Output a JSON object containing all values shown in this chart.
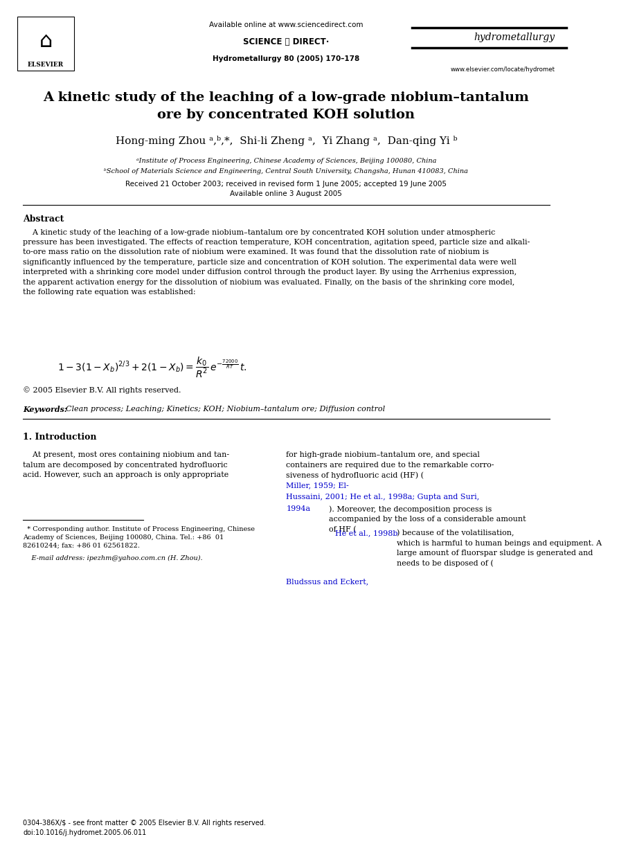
{
  "bg_color": "#ffffff",
  "page_width": 9.07,
  "page_height": 12.38,
  "dpi": 100,
  "header_available": "Available online at www.sciencedirect.com",
  "header_journal_info": "Hydrometallurgy 80 (2005) 170–178",
  "header_journal_name": "hydrometallurgy",
  "header_website": "www.elsevier.com/locate/hydromet",
  "header_elsevier": "ELSEVIER",
  "title": "A kinetic study of the leaching of a low-grade niobium–tantalum\nore by concentrated KOH solution",
  "affil_a": "ᵃInstitute of Process Engineering, Chinese Academy of Sciences, Beijing 100080, China",
  "affil_b": "ᵇSchool of Materials Science and Engineering, Central South University, Changsha, Hunan 410083, China",
  "received": "Received 21 October 2003; received in revised form 1 June 2005; accepted 19 June 2005",
  "available_online2": "Available online 3 August 2005",
  "abstract_title": "Abstract",
  "abstract_text": "    A kinetic study of the leaching of a low-grade niobium–tantalum ore by concentrated KOH solution under atmospheric\npressure has been investigated. The effects of reaction temperature, KOH concentration, agitation speed, particle size and alkali-\nto-ore mass ratio on the dissolution rate of niobium were examined. It was found that the dissolution rate of niobium is\nsignificantly influenced by the temperature, particle size and concentration of KOH solution. The experimental data were well\ninterpreted with a shrinking core model under diffusion control through the product layer. By using the Arrhenius expression,\nthe apparent activation energy for the dissolution of niobium was evaluated. Finally, on the basis of the shrinking core model,\nthe following rate equation was established:",
  "copyright": "© 2005 Elsevier B.V. All rights reserved.",
  "keywords_label": "Keywords: ",
  "keywords_text": "Clean process; Leaching; Kinetics; KOH; Niobium–tantalum ore; Diffusion control",
  "section1_title": "1. Introduction",
  "section1_col1": "    At present, most ores containing niobium and tan-\ntalum are decomposed by concentrated hydrofluoric\nacid. However, such an approach is only appropriate",
  "footnote_star": "  * Corresponding author. Institute of Process Engineering, Chinese\nAcademy of Sciences, Beijing 100080, China. Tel.: +86  01\n82610244; fax: +86 01 62561822.",
  "footnote_email": "    E-mail address: ipezhm@yahoo.com.cn (H. Zhou).",
  "bottom_text1": "0304-386X/$ - see front matter © 2005 Elsevier B.V. All rights reserved.",
  "bottom_text2": "doi:10.1016/j.hydromet.2005.06.011",
  "link_color": "#0000cc",
  "text_color": "#000000"
}
